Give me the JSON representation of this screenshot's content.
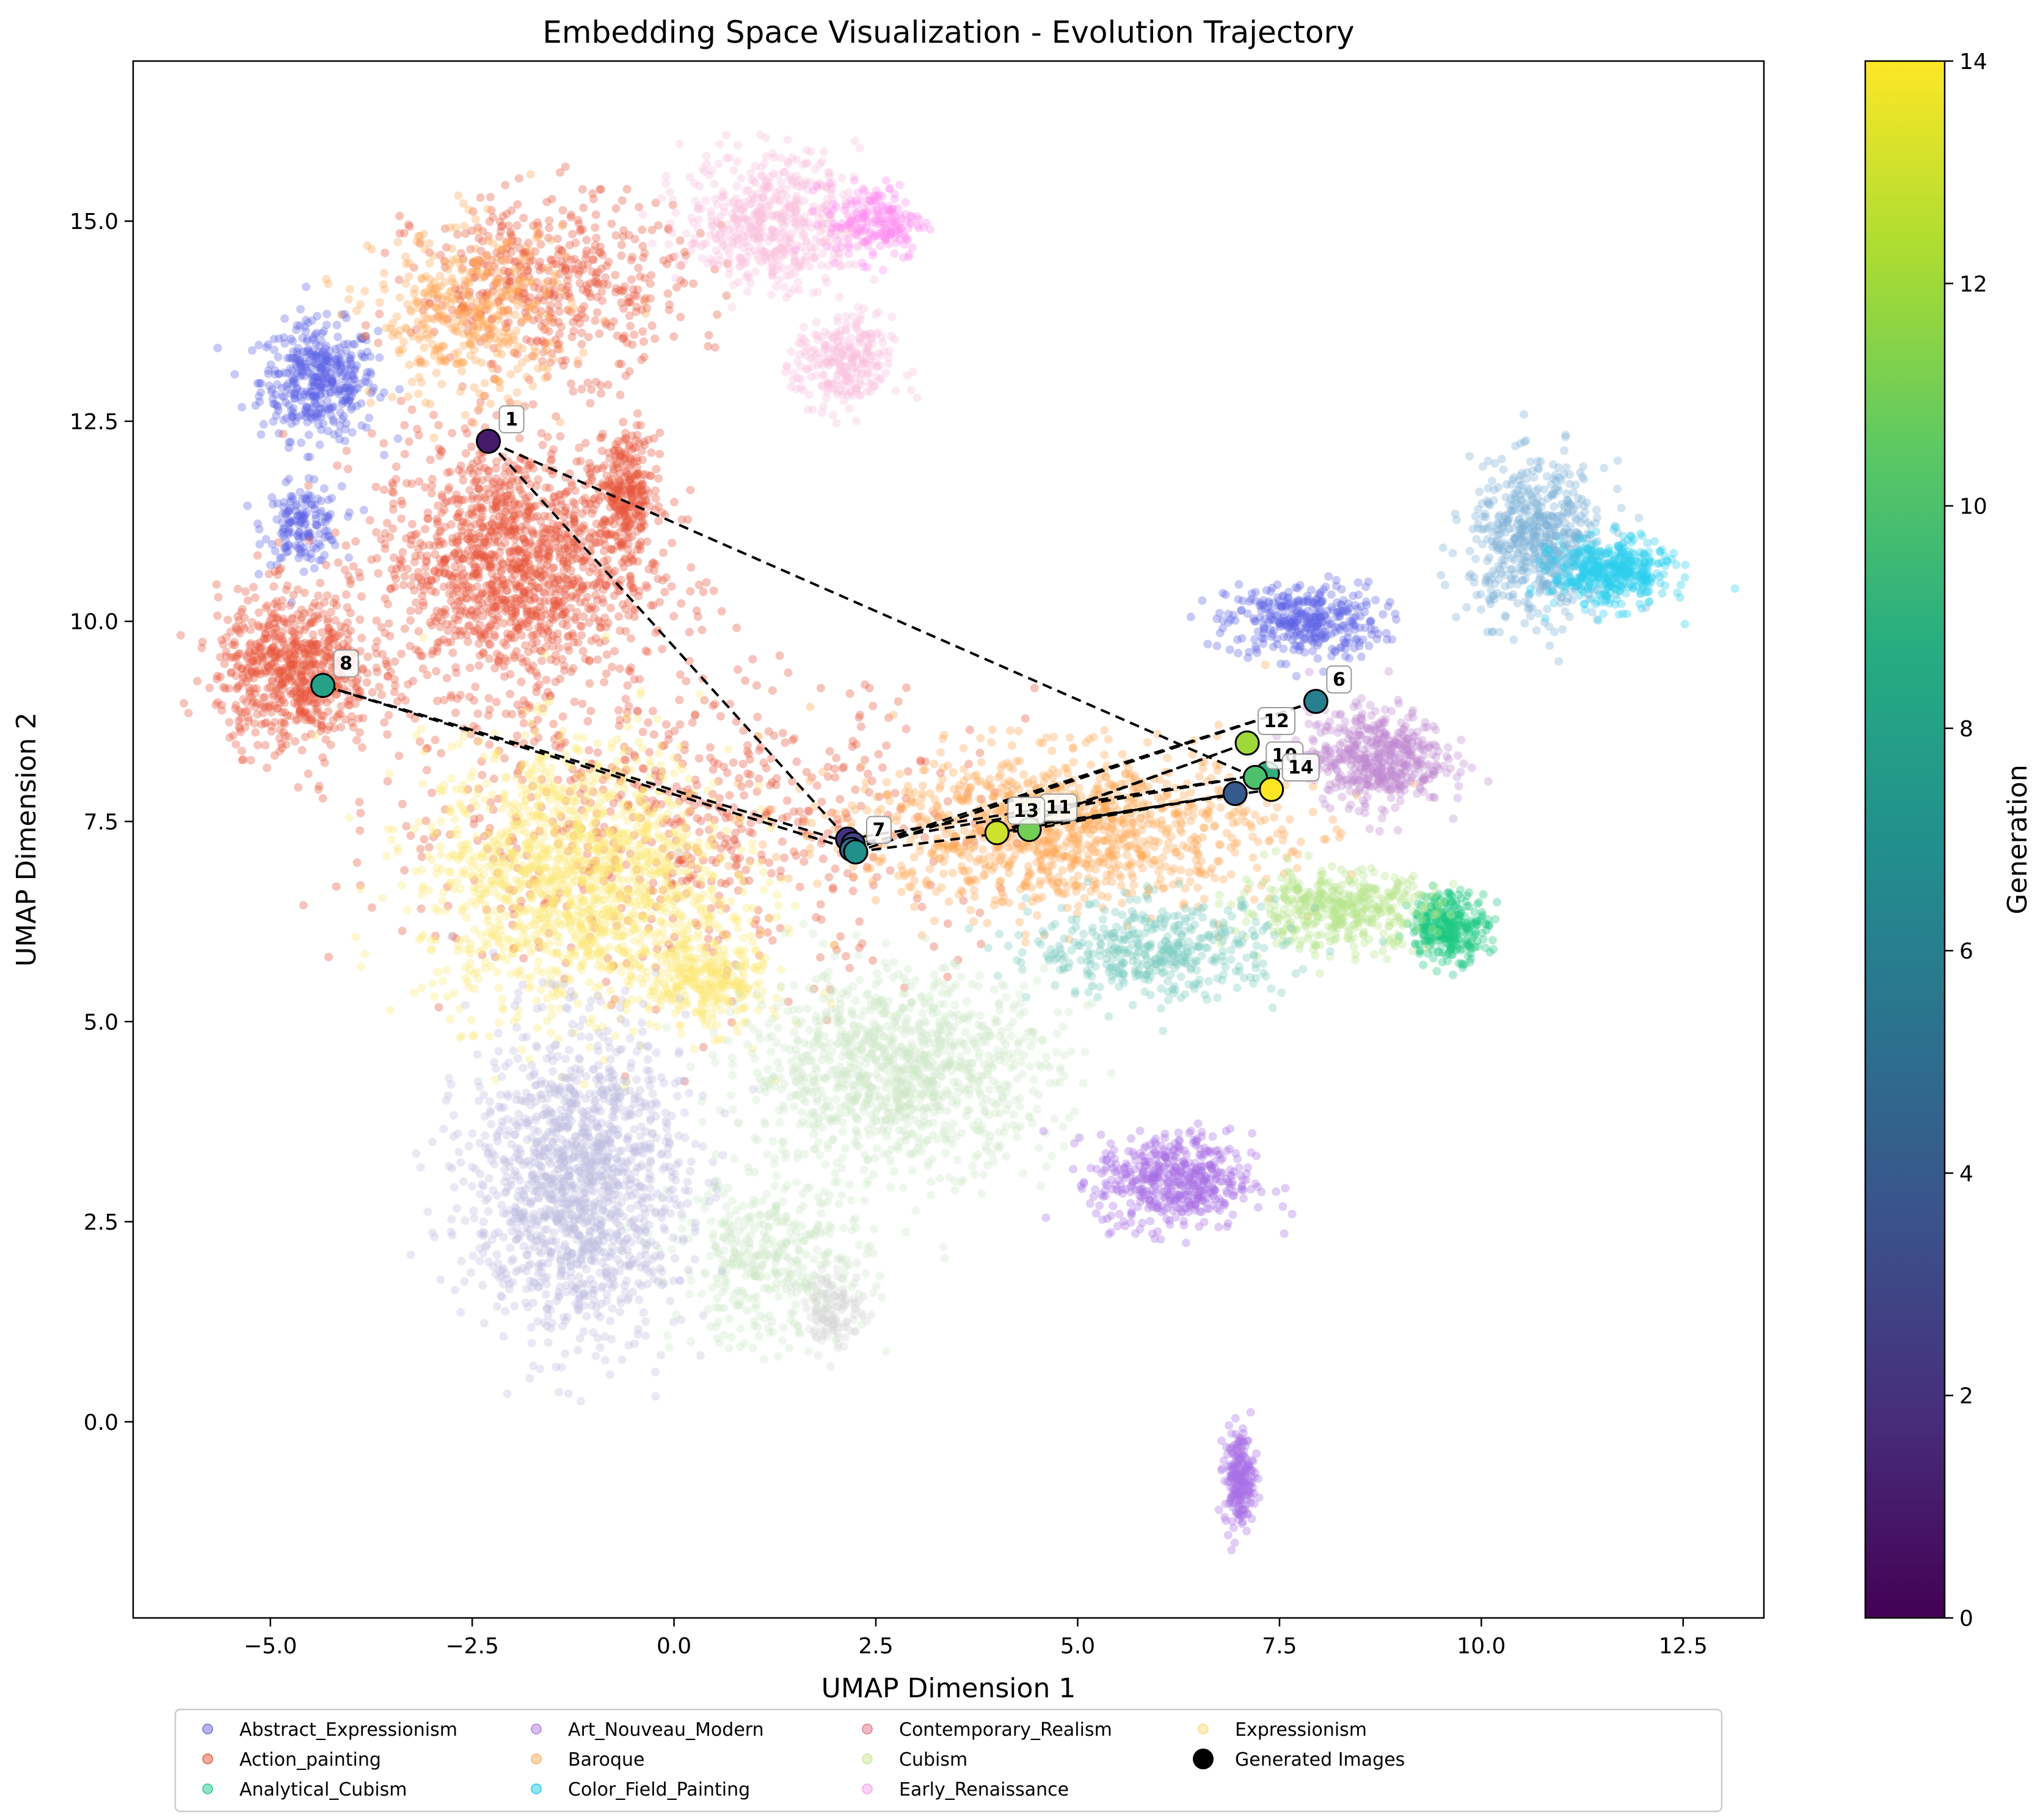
{
  "chart_data": {
    "type": "scatter",
    "title": "Embedding Space Visualization - Evolution Trajectory",
    "xlabel": "UMAP Dimension 1",
    "ylabel": "UMAP Dimension 2",
    "xlim": [
      -6.7,
      13.5
    ],
    "ylim": [
      -2.45,
      17.0
    ],
    "x_ticks": [
      -5.0,
      -2.5,
      0.0,
      2.5,
      5.0,
      7.5,
      10.0,
      12.5
    ],
    "y_ticks": [
      0.0,
      2.5,
      5.0,
      7.5,
      10.0,
      12.5,
      15.0
    ],
    "x_tick_labels": [
      "−5.0",
      "−2.5",
      "0.0",
      "2.5",
      "5.0",
      "7.5",
      "10.0",
      "12.5"
    ],
    "y_tick_labels": [
      "0.0",
      "2.5",
      "5.0",
      "7.5",
      "10.0",
      "12.5",
      "15.0"
    ],
    "grid": false,
    "legend_position": "bottom-outside",
    "legend": [
      {
        "label": "Abstract_Expressionism",
        "color": "#6b6bd8"
      },
      {
        "label": "Action_painting",
        "color": "#e8573c"
      },
      {
        "label": "Analytical_Cubism",
        "color": "#1fc98a"
      },
      {
        "label": "Art_Nouveau_Modern",
        "color": "#b07ee0"
      },
      {
        "label": "Baroque",
        "color": "#ffad5c"
      },
      {
        "label": "Color_Field_Painting",
        "color": "#23c8ee"
      },
      {
        "label": "Contemporary_Realism",
        "color": "#e0758c"
      },
      {
        "label": "Cubism",
        "color": "#c9e89b"
      },
      {
        "label": "Early_Renaissance",
        "color": "#f4a3ee"
      },
      {
        "label": "Expressionism",
        "color": "#fbd97a"
      },
      {
        "label": "Generated Images",
        "color": "#000000",
        "marker": "large"
      }
    ],
    "background_clusters": [
      {
        "series": "Abstract_Expressionism",
        "color": "#5e64e6",
        "center": [
          -4.4,
          13.0
        ],
        "spread": [
          0.6,
          0.6
        ],
        "n": 420
      },
      {
        "series": "Abstract_Expressionism",
        "color": "#5e64e6",
        "center": [
          -4.6,
          11.2
        ],
        "spread": [
          0.4,
          0.4
        ],
        "n": 160
      },
      {
        "series": "Abstract_Expressionism",
        "color": "#5e64e6",
        "center": [
          7.8,
          10.0
        ],
        "spread": [
          0.8,
          0.4
        ],
        "n": 360
      },
      {
        "series": "Action_painting",
        "color": "#e8573c",
        "center": [
          -2.0,
          10.7
        ],
        "spread": [
          1.4,
          1.3
        ],
        "n": 1400
      },
      {
        "series": "Action_painting",
        "color": "#e8573c",
        "center": [
          -4.7,
          9.4
        ],
        "spread": [
          0.8,
          0.8
        ],
        "n": 700
      },
      {
        "series": "Action_painting",
        "color": "#e8573c",
        "center": [
          -0.6,
          11.6
        ],
        "spread": [
          0.3,
          0.6
        ],
        "n": 260
      },
      {
        "series": "Action_painting",
        "color": "#e8573c",
        "center": [
          -1.5,
          14.2
        ],
        "spread": [
          1.4,
          0.9
        ],
        "n": 500
      },
      {
        "series": "Action_painting",
        "color": "#e8573c",
        "center": [
          0.0,
          7.5
        ],
        "spread": [
          3.0,
          1.6
        ],
        "n": 700
      },
      {
        "series": "Baroque",
        "color": "#ffa552",
        "center": [
          -2.5,
          13.8
        ],
        "spread": [
          1.0,
          0.9
        ],
        "n": 420
      },
      {
        "series": "Baroque",
        "color": "#ffa552",
        "center": [
          4.8,
          7.4
        ],
        "spread": [
          2.2,
          0.8
        ],
        "n": 1100
      },
      {
        "series": "Early_Renaissance",
        "color": "#f9c0de",
        "center": [
          1.2,
          15.0
        ],
        "spread": [
          0.9,
          0.7
        ],
        "n": 520
      },
      {
        "series": "Early_Renaissance",
        "color": "#f9c0de",
        "center": [
          2.1,
          13.2
        ],
        "spread": [
          0.5,
          0.5
        ],
        "n": 260
      },
      {
        "series": "Early_Renaissance",
        "color": "#ff8cf0",
        "center": [
          2.5,
          15.0
        ],
        "spread": [
          0.5,
          0.4
        ],
        "n": 200
      },
      {
        "series": "Expressionism",
        "color": "#fde776",
        "center": [
          -1.2,
          6.8
        ],
        "spread": [
          1.6,
          1.4
        ],
        "n": 1500
      },
      {
        "series": "Expressionism",
        "color": "#fde776",
        "center": [
          0.4,
          5.5
        ],
        "spread": [
          0.6,
          0.5
        ],
        "n": 300
      },
      {
        "series": "Cubism",
        "color": "#cfe9c9",
        "center": [
          2.8,
          4.4
        ],
        "spread": [
          1.6,
          1.0
        ],
        "n": 1100
      },
      {
        "series": "Cubism",
        "color": "#cfe9c9",
        "center": [
          1.2,
          2.0
        ],
        "spread": [
          1.0,
          0.9
        ],
        "n": 400
      },
      {
        "series": "Cubism",
        "color": "#d8d8d8",
        "center": [
          2.0,
          1.4
        ],
        "spread": [
          0.3,
          0.4
        ],
        "n": 120
      },
      {
        "series": "Abstract_Expressionism",
        "color": "#c0bde0",
        "center": [
          -1.2,
          3.0
        ],
        "spread": [
          1.1,
          1.6
        ],
        "n": 1400
      },
      {
        "series": "Art_Nouveau_Modern",
        "color": "#a96fe6",
        "center": [
          6.2,
          3.0
        ],
        "spread": [
          0.8,
          0.5
        ],
        "n": 500
      },
      {
        "series": "Art_Nouveau_Modern",
        "color": "#a96fe6",
        "center": [
          7.0,
          -0.7
        ],
        "spread": [
          0.15,
          0.5
        ],
        "n": 220
      },
      {
        "series": "Art_Nouveau_Modern",
        "color": "#c08ad2",
        "center": [
          8.7,
          8.3
        ],
        "spread": [
          0.7,
          0.5
        ],
        "n": 500
      },
      {
        "series": "Color_Field_Painting",
        "color": "#7fb2d6",
        "center": [
          10.7,
          11.0
        ],
        "spread": [
          0.7,
          0.8
        ],
        "n": 600
      },
      {
        "series": "Color_Field_Painting",
        "color": "#2ccdee",
        "center": [
          11.6,
          10.6
        ],
        "spread": [
          0.6,
          0.35
        ],
        "n": 420
      },
      {
        "series": "Analytical_Cubism",
        "color": "#1ec882",
        "center": [
          9.6,
          6.2
        ],
        "spread": [
          0.4,
          0.35
        ],
        "n": 320
      },
      {
        "series": "Cubism",
        "color": "#b8e48b",
        "center": [
          8.2,
          6.4
        ],
        "spread": [
          1.0,
          0.4
        ],
        "n": 420
      },
      {
        "series": "Color_Field_Painting",
        "color": "#7ccabf",
        "center": [
          6.0,
          5.9
        ],
        "spread": [
          1.3,
          0.5
        ],
        "n": 420
      }
    ],
    "generated": [
      {
        "gen": 1,
        "x": -2.3,
        "y": 12.25,
        "label": "1"
      },
      {
        "gen": 2,
        "x": 2.15,
        "y": 7.28,
        "label": ""
      },
      {
        "gen": 3,
        "x": 2.22,
        "y": 7.22,
        "label": ""
      },
      {
        "gen": 4,
        "x": 6.95,
        "y": 7.85,
        "label": ""
      },
      {
        "gen": 5,
        "x": 2.2,
        "y": 7.15,
        "label": ""
      },
      {
        "gen": 6,
        "x": 7.95,
        "y": 9.0,
        "label": "6"
      },
      {
        "gen": 7,
        "x": 2.25,
        "y": 7.12,
        "label": "7"
      },
      {
        "gen": 8,
        "x": -4.35,
        "y": 9.2,
        "label": "8"
      },
      {
        "gen": 9,
        "x": 7.35,
        "y": 8.1,
        "label": ""
      },
      {
        "gen": 10,
        "x": 7.2,
        "y": 8.05,
        "label": "10"
      },
      {
        "gen": 11,
        "x": 4.4,
        "y": 7.4,
        "label": "11"
      },
      {
        "gen": 12,
        "x": 7.1,
        "y": 8.48,
        "label": "12"
      },
      {
        "gen": 13,
        "x": 4.0,
        "y": 7.36,
        "label": "13"
      },
      {
        "gen": 14,
        "x": 7.4,
        "y": 7.9,
        "label": "14"
      }
    ],
    "trajectory": [
      [
        7.2,
        8.05
      ],
      [
        -2.3,
        12.25
      ],
      [
        2.15,
        7.28
      ],
      [
        7.35,
        8.1
      ],
      [
        2.22,
        7.22
      ],
      [
        -4.35,
        9.2
      ],
      [
        2.2,
        7.15
      ],
      [
        7.95,
        9.0
      ],
      [
        2.25,
        7.12
      ],
      [
        4.4,
        7.4
      ],
      [
        6.95,
        7.85
      ],
      [
        4.0,
        7.36
      ],
      [
        7.1,
        8.48
      ],
      [
        4.2,
        7.42
      ],
      [
        7.4,
        7.9
      ]
    ],
    "colorbar": {
      "label": "Generation",
      "min": 0,
      "max": 14,
      "ticks": [
        0,
        2,
        4,
        6,
        8,
        10,
        12,
        14
      ],
      "tick_labels": [
        "0",
        "2",
        "4",
        "6",
        "8",
        "10",
        "12",
        "14"
      ],
      "colormap": "viridis"
    }
  }
}
